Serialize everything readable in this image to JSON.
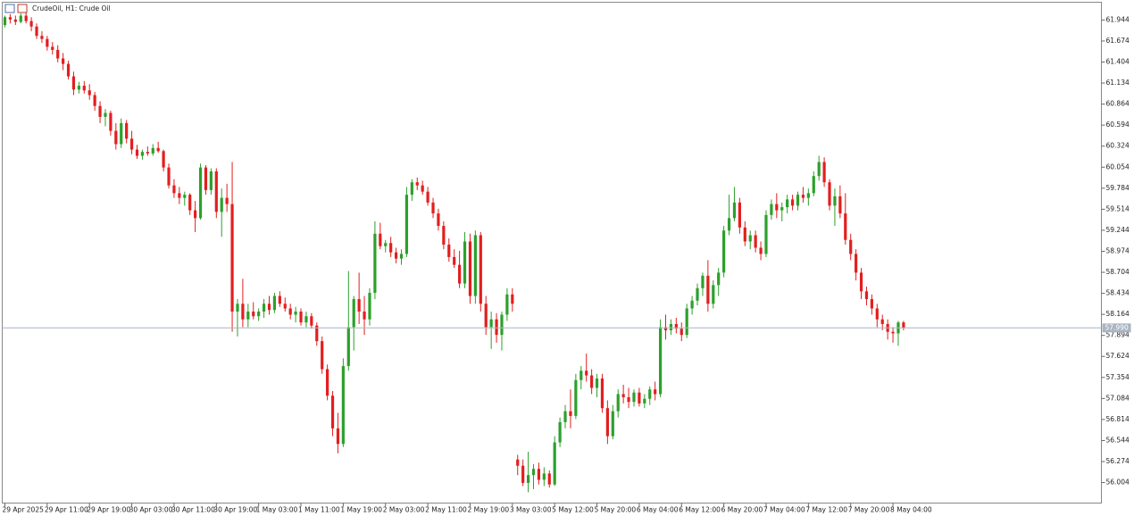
{
  "chart_data": {
    "type": "candlestick",
    "title": "CrudeOil, H1:  Crude Oil",
    "up_color": "#2ca02c",
    "down_color": "#e31e1e",
    "last_price": {
      "value": 57.99,
      "label": "57.990"
    },
    "ylim": [
      55.741,
      62.172
    ],
    "yticks": [
      61.944,
      61.674,
      61.404,
      61.134,
      60.864,
      60.594,
      60.324,
      60.054,
      59.784,
      59.514,
      59.244,
      58.974,
      58.704,
      58.434,
      58.164,
      57.894,
      57.624,
      57.354,
      57.084,
      56.814,
      56.544,
      56.274,
      56.004
    ],
    "categories": [
      "29 Apr 2025",
      null,
      null,
      null,
      null,
      null,
      null,
      null,
      "29 Apr 11:00",
      null,
      null,
      null,
      null,
      null,
      null,
      null,
      "29 Apr 19:00",
      null,
      null,
      null,
      null,
      null,
      null,
      null,
      "30 Apr 03:00",
      null,
      null,
      null,
      null,
      null,
      null,
      null,
      "30 Apr 11:00",
      null,
      null,
      null,
      null,
      null,
      null,
      null,
      "30 Apr 19:00",
      null,
      null,
      null,
      null,
      null,
      null,
      null,
      "1 May 03:00",
      null,
      null,
      null,
      null,
      null,
      null,
      null,
      "1 May 11:00",
      null,
      null,
      null,
      null,
      null,
      null,
      null,
      "1 May 19:00",
      null,
      null,
      null,
      null,
      null,
      null,
      null,
      "2 May 03:00",
      null,
      null,
      null,
      null,
      null,
      null,
      null,
      "2 May 11:00",
      null,
      null,
      null,
      null,
      null,
      null,
      null,
      "2 May 19:00",
      null,
      null,
      null,
      null,
      null,
      null,
      null,
      "3 May 03:00",
      null,
      null,
      null,
      null,
      null,
      null,
      null,
      "5 May 12:00",
      null,
      null,
      null,
      null,
      null,
      null,
      null,
      "5 May 20:00",
      null,
      null,
      null,
      null,
      null,
      null,
      null,
      "6 May 04:00",
      null,
      null,
      null,
      null,
      null,
      null,
      null,
      "6 May 12:00",
      null,
      null,
      null,
      null,
      null,
      null,
      null,
      "6 May 20:00",
      null,
      null,
      null,
      null,
      null,
      null,
      null,
      "7 May 04:00",
      null,
      null,
      null,
      null,
      null,
      null,
      null,
      "7 May 12:00",
      null,
      null,
      null,
      null,
      null,
      null,
      null,
      "7 May 20:00",
      null,
      null,
      null,
      null,
      null,
      null,
      null,
      "8 May 04:00",
      null,
      null
    ],
    "values": [
      [
        61.88,
        62.0,
        61.85,
        61.98
      ],
      [
        61.98,
        62.02,
        61.9,
        61.95
      ],
      [
        61.95,
        62.0,
        61.88,
        61.92
      ],
      [
        61.92,
        62.03,
        61.9,
        62.0
      ],
      [
        62.0,
        62.04,
        61.9,
        61.93
      ],
      [
        61.93,
        61.98,
        61.8,
        61.86
      ],
      [
        61.86,
        61.9,
        61.7,
        61.74
      ],
      [
        61.74,
        61.8,
        61.65,
        61.7
      ],
      [
        61.7,
        61.74,
        61.55,
        61.6
      ],
      [
        61.6,
        61.66,
        61.5,
        61.56
      ],
      [
        61.56,
        61.62,
        61.4,
        61.45
      ],
      [
        61.45,
        61.52,
        61.3,
        61.38
      ],
      [
        61.38,
        61.42,
        61.18,
        61.22
      ],
      [
        61.22,
        61.28,
        60.98,
        61.05
      ],
      [
        61.05,
        61.15,
        61.0,
        61.1
      ],
      [
        61.1,
        61.16,
        61.0,
        61.04
      ],
      [
        61.04,
        61.12,
        60.92,
        60.98
      ],
      [
        60.98,
        61.02,
        60.78,
        60.84
      ],
      [
        60.84,
        60.9,
        60.62,
        60.7
      ],
      [
        60.7,
        60.8,
        60.58,
        60.75
      ],
      [
        60.75,
        60.78,
        60.46,
        60.52
      ],
      [
        60.52,
        60.62,
        60.28,
        60.35
      ],
      [
        60.35,
        60.68,
        60.3,
        60.62
      ],
      [
        60.62,
        60.66,
        60.36,
        60.42
      ],
      [
        60.42,
        60.52,
        60.22,
        60.28
      ],
      [
        60.28,
        60.34,
        60.16,
        60.2
      ],
      [
        60.2,
        60.28,
        60.15,
        60.25
      ],
      [
        60.25,
        60.32,
        60.2,
        60.23
      ],
      [
        60.23,
        60.35,
        60.2,
        60.3
      ],
      [
        60.3,
        60.38,
        60.24,
        60.26
      ],
      [
        60.26,
        60.28,
        60.0,
        60.05
      ],
      [
        60.05,
        60.1,
        59.78,
        59.82
      ],
      [
        59.82,
        59.9,
        59.66,
        59.72
      ],
      [
        59.72,
        59.8,
        59.58,
        59.66
      ],
      [
        59.66,
        59.74,
        59.56,
        59.7
      ],
      [
        59.7,
        59.72,
        59.44,
        59.5
      ],
      [
        59.5,
        59.62,
        59.22,
        59.4
      ],
      [
        59.4,
        60.1,
        59.38,
        60.05
      ],
      [
        60.05,
        60.08,
        59.7,
        59.76
      ],
      [
        59.76,
        60.04,
        59.7,
        60.0
      ],
      [
        60.0,
        60.04,
        59.4,
        59.48
      ],
      [
        59.48,
        59.78,
        59.16,
        59.66
      ],
      [
        59.66,
        59.84,
        59.48,
        59.58
      ],
      [
        59.58,
        60.12,
        57.94,
        58.2
      ],
      [
        58.2,
        58.36,
        57.88,
        58.3
      ],
      [
        58.3,
        58.62,
        58.0,
        58.1
      ],
      [
        58.1,
        58.3,
        58.0,
        58.2
      ],
      [
        58.2,
        58.32,
        58.1,
        58.14
      ],
      [
        58.14,
        58.24,
        58.08,
        58.2
      ],
      [
        58.2,
        58.36,
        58.12,
        58.3
      ],
      [
        58.3,
        58.4,
        58.16,
        58.22
      ],
      [
        58.22,
        58.44,
        58.18,
        58.4
      ],
      [
        58.4,
        58.46,
        58.26,
        58.3
      ],
      [
        58.3,
        58.38,
        58.2,
        58.24
      ],
      [
        58.24,
        58.3,
        58.1,
        58.16
      ],
      [
        58.16,
        58.26,
        58.06,
        58.2
      ],
      [
        58.2,
        58.24,
        58.02,
        58.06
      ],
      [
        58.06,
        58.2,
        58.0,
        58.14
      ],
      [
        58.14,
        58.18,
        57.98,
        58.02
      ],
      [
        58.02,
        58.06,
        57.76,
        57.82
      ],
      [
        57.82,
        57.88,
        57.4,
        57.46
      ],
      [
        57.46,
        57.52,
        57.06,
        57.12
      ],
      [
        57.12,
        57.18,
        56.6,
        56.7
      ],
      [
        56.7,
        56.9,
        56.38,
        56.5
      ],
      [
        56.5,
        57.6,
        56.46,
        57.5
      ],
      [
        57.5,
        58.72,
        57.44,
        58.0
      ],
      [
        58.0,
        58.4,
        57.7,
        58.36
      ],
      [
        58.36,
        58.7,
        58.04,
        58.2
      ],
      [
        58.2,
        58.4,
        57.9,
        58.1
      ],
      [
        58.1,
        58.5,
        58.02,
        58.44
      ],
      [
        58.44,
        59.36,
        58.36,
        59.2
      ],
      [
        59.2,
        59.34,
        59.0,
        59.04
      ],
      [
        59.04,
        59.12,
        58.96,
        59.08
      ],
      [
        59.08,
        59.16,
        58.9,
        58.96
      ],
      [
        58.96,
        59.02,
        58.82,
        58.88
      ],
      [
        58.88,
        59.0,
        58.8,
        58.94
      ],
      [
        58.94,
        59.8,
        58.9,
        59.7
      ],
      [
        59.7,
        59.9,
        59.62,
        59.86
      ],
      [
        59.86,
        59.92,
        59.76,
        59.82
      ],
      [
        59.82,
        59.88,
        59.7,
        59.74
      ],
      [
        59.74,
        59.8,
        59.56,
        59.6
      ],
      [
        59.6,
        59.66,
        59.4,
        59.46
      ],
      [
        59.46,
        59.52,
        59.24,
        59.3
      ],
      [
        59.3,
        59.36,
        59.0,
        59.06
      ],
      [
        59.06,
        59.14,
        58.84,
        58.9
      ],
      [
        58.9,
        59.0,
        58.76,
        58.8
      ],
      [
        58.8,
        58.98,
        58.5,
        58.56
      ],
      [
        58.56,
        59.22,
        58.5,
        59.1
      ],
      [
        59.1,
        59.2,
        58.3,
        58.4
      ],
      [
        58.4,
        59.24,
        58.3,
        59.18
      ],
      [
        59.18,
        59.22,
        58.2,
        58.3
      ],
      [
        58.3,
        58.4,
        57.9,
        58.0
      ],
      [
        58.0,
        58.2,
        57.72,
        58.1
      ],
      [
        58.1,
        58.18,
        57.8,
        57.9
      ],
      [
        57.9,
        58.2,
        57.7,
        58.16
      ],
      [
        58.16,
        58.5,
        58.08,
        58.42
      ],
      [
        58.42,
        58.5,
        58.2,
        58.3
      ],
      [
        56.3,
        56.36,
        56.1,
        56.22
      ],
      [
        56.22,
        56.3,
        55.96,
        56.0
      ],
      [
        56.0,
        56.4,
        55.88,
        56.1
      ],
      [
        56.1,
        56.24,
        55.92,
        56.18
      ],
      [
        56.18,
        56.26,
        55.98,
        56.04
      ],
      [
        56.04,
        56.2,
        55.96,
        56.12
      ],
      [
        56.12,
        56.16,
        55.94,
        55.98
      ],
      [
        55.98,
        56.6,
        55.96,
        56.52
      ],
      [
        56.52,
        56.84,
        56.46,
        56.78
      ],
      [
        56.78,
        57.0,
        56.7,
        56.92
      ],
      [
        56.92,
        57.2,
        56.7,
        56.86
      ],
      [
        56.86,
        57.4,
        56.82,
        57.32
      ],
      [
        57.32,
        57.5,
        57.2,
        57.44
      ],
      [
        57.44,
        57.66,
        57.3,
        57.38
      ],
      [
        57.38,
        57.46,
        57.14,
        57.22
      ],
      [
        57.22,
        57.4,
        57.1,
        57.34
      ],
      [
        57.34,
        57.4,
        56.9,
        56.96
      ],
      [
        56.96,
        57.06,
        56.5,
        56.6
      ],
      [
        56.6,
        57.0,
        56.56,
        56.92
      ],
      [
        56.92,
        57.2,
        56.84,
        57.14
      ],
      [
        57.14,
        57.26,
        57.02,
        57.1
      ],
      [
        57.1,
        57.22,
        56.96,
        57.04
      ],
      [
        57.04,
        57.2,
        56.98,
        57.16
      ],
      [
        57.16,
        57.22,
        56.98,
        57.02
      ],
      [
        57.02,
        57.14,
        56.96,
        57.08
      ],
      [
        57.08,
        57.24,
        57.0,
        57.2
      ],
      [
        57.2,
        57.3,
        57.06,
        57.14
      ],
      [
        57.14,
        58.1,
        57.1,
        58.0
      ],
      [
        58.0,
        58.16,
        57.84,
        57.96
      ],
      [
        57.96,
        58.1,
        57.9,
        58.04
      ],
      [
        58.04,
        58.12,
        57.92,
        57.98
      ],
      [
        57.98,
        58.06,
        57.82,
        57.9
      ],
      [
        57.9,
        58.3,
        57.86,
        58.24
      ],
      [
        58.24,
        58.4,
        58.16,
        58.34
      ],
      [
        58.34,
        58.56,
        58.28,
        58.5
      ],
      [
        58.5,
        58.7,
        58.4,
        58.66
      ],
      [
        58.66,
        58.86,
        58.2,
        58.3
      ],
      [
        58.3,
        58.6,
        58.24,
        58.54
      ],
      [
        58.54,
        58.76,
        58.4,
        58.7
      ],
      [
        58.7,
        59.3,
        58.64,
        59.24
      ],
      [
        59.24,
        59.7,
        59.18,
        59.4
      ],
      [
        59.4,
        59.8,
        59.36,
        59.6
      ],
      [
        59.6,
        59.66,
        59.2,
        59.28
      ],
      [
        59.28,
        59.36,
        59.04,
        59.1
      ],
      [
        59.1,
        59.24,
        59.0,
        59.18
      ],
      [
        59.18,
        59.24,
        58.96,
        59.02
      ],
      [
        59.02,
        59.1,
        58.86,
        58.94
      ],
      [
        58.94,
        59.5,
        58.9,
        59.44
      ],
      [
        59.44,
        59.64,
        59.38,
        59.58
      ],
      [
        59.58,
        59.72,
        59.4,
        59.5
      ],
      [
        59.5,
        59.6,
        59.36,
        59.54
      ],
      [
        59.54,
        59.7,
        59.46,
        59.64
      ],
      [
        59.64,
        59.7,
        59.5,
        59.56
      ],
      [
        59.56,
        59.74,
        59.5,
        59.7
      ],
      [
        59.7,
        59.8,
        59.6,
        59.66
      ],
      [
        59.66,
        59.78,
        59.56,
        59.72
      ],
      [
        59.72,
        60.0,
        59.68,
        59.94
      ],
      [
        59.94,
        60.2,
        59.88,
        60.12
      ],
      [
        60.12,
        60.18,
        59.8,
        59.86
      ],
      [
        59.86,
        59.9,
        59.5,
        59.56
      ],
      [
        59.56,
        59.78,
        59.3,
        59.68
      ],
      [
        59.68,
        59.82,
        59.4,
        59.46
      ],
      [
        59.46,
        59.72,
        59.06,
        59.12
      ],
      [
        59.12,
        59.2,
        58.86,
        58.94
      ],
      [
        58.94,
        59.0,
        58.6,
        58.7
      ],
      [
        58.7,
        58.76,
        58.36,
        58.46
      ],
      [
        58.46,
        58.52,
        58.28,
        58.36
      ],
      [
        58.36,
        58.42,
        58.16,
        58.24
      ],
      [
        58.24,
        58.3,
        58.0,
        58.1
      ],
      [
        58.1,
        58.16,
        57.96,
        58.04
      ],
      [
        58.04,
        58.1,
        57.84,
        57.94
      ],
      [
        57.94,
        58.0,
        57.8,
        57.92
      ],
      [
        57.92,
        58.08,
        57.76,
        58.06
      ],
      [
        58.06,
        58.08,
        57.96,
        57.99
      ]
    ]
  }
}
